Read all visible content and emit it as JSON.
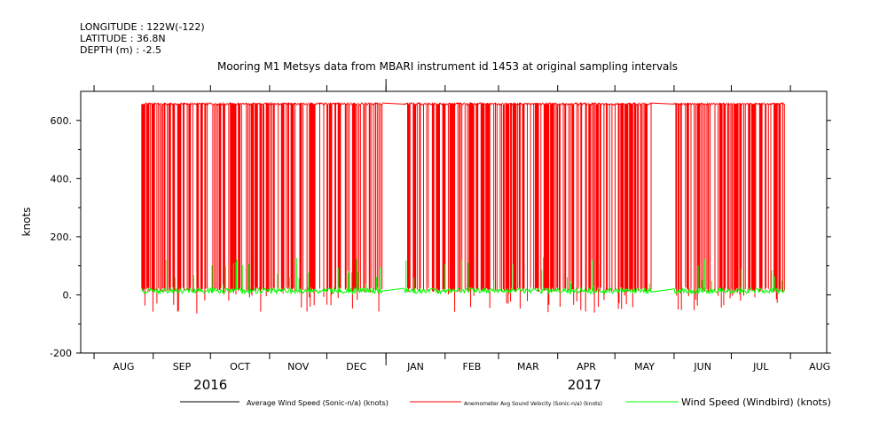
{
  "meta": {
    "longitude": "LONGITUDE : 122W(-122)",
    "latitude": "LATITUDE : 36.8N",
    "depth": "DEPTH (m) : -2.5"
  },
  "chart_data": {
    "type": "line",
    "title": "Mooring M1 Metsys data from MBARI instrument id 1453 at original sampling intervals",
    "ylabel": "knots",
    "xlabel": "",
    "ylim": [
      -200,
      700
    ],
    "yticks": [
      -200,
      0,
      200,
      400,
      600
    ],
    "ytick_labels": [
      "-200",
      "0.",
      "200.",
      "400.",
      "600."
    ],
    "xlim": [
      "2016-07-25",
      "2017-08-20"
    ],
    "x_months": [
      {
        "label": "AUG",
        "date": "2016-08-01"
      },
      {
        "label": "SEP",
        "date": "2016-09-01"
      },
      {
        "label": "OCT",
        "date": "2016-10-01"
      },
      {
        "label": "NOV",
        "date": "2016-11-01"
      },
      {
        "label": "DEC",
        "date": "2016-12-01"
      },
      {
        "label": "JAN",
        "date": "2017-01-01"
      },
      {
        "label": "FEB",
        "date": "2017-02-01"
      },
      {
        "label": "MAR",
        "date": "2017-03-01"
      },
      {
        "label": "APR",
        "date": "2017-04-01"
      },
      {
        "label": "MAY",
        "date": "2017-05-01"
      },
      {
        "label": "JUN",
        "date": "2017-06-01"
      },
      {
        "label": "JUL",
        "date": "2017-07-01"
      },
      {
        "label": "AUG",
        "date": "2017-08-01"
      }
    ],
    "x_years": [
      {
        "label": "2016",
        "date": "2016-10-01"
      },
      {
        "label": "2017",
        "date": "2017-04-15"
      }
    ],
    "legend": "bottom",
    "series": [
      {
        "name": "Average Wind Speed (Sonic-n/a) (knots)",
        "color": "#000000",
        "x": [],
        "y": []
      },
      {
        "name": "Anemometer Avg Sound Velocity (Sonic-n/a) (knots)",
        "color": "#ff0000",
        "x": [
          "2016-08-25",
          "2016-10-15",
          "2016-11-15",
          "2016-12-10",
          "2016-12-28",
          "2017-01-05",
          "2017-01-12",
          "2017-02-10",
          "2017-03-15",
          "2017-04-15",
          "2017-05-15",
          "2017-05-25",
          "2017-06-10",
          "2017-07-10",
          "2017-07-28"
        ],
        "y": [
          660,
          662,
          660,
          660,
          658,
          null,
          655,
          658,
          658,
          658,
          656,
          null,
          658,
          658,
          660
        ]
      },
      {
        "name": "Wind Speed (Windbird) (knots)",
        "color": "#00ff00",
        "x": [
          "2016-08-25",
          "2016-09-20",
          "2016-10-20",
          "2016-11-20",
          "2016-12-15",
          "2016-12-28",
          "2017-01-12",
          "2017-02-15",
          "2017-03-15",
          "2017-04-10",
          "2017-04-25",
          "2017-05-20",
          "2017-05-25",
          "2017-06-15",
          "2017-07-15",
          "2017-07-28"
        ],
        "y": [
          10,
          12,
          12,
          15,
          18,
          15,
          5,
          12,
          12,
          15,
          15,
          12,
          15,
          15,
          15,
          20
        ]
      }
    ]
  }
}
